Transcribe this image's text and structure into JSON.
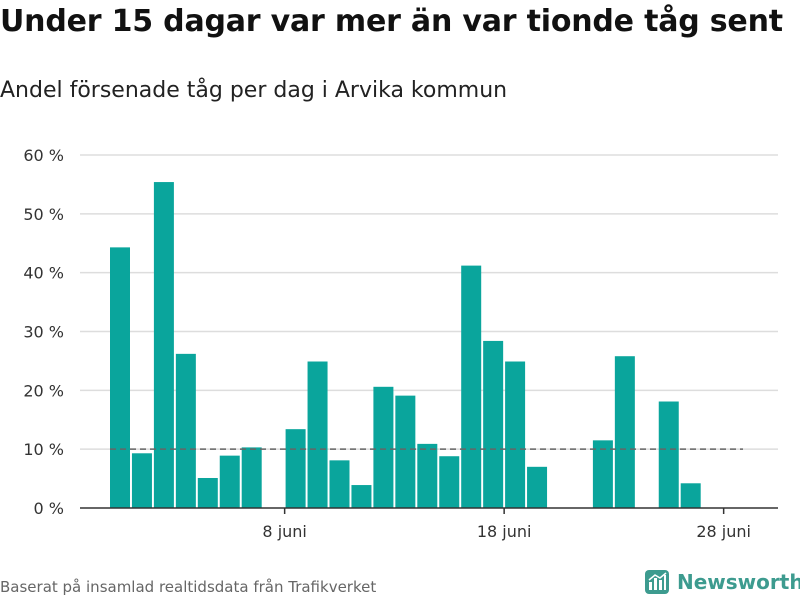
{
  "header": {
    "title": "Under 15 dagar var mer än var tionde tåg sent",
    "subtitle": "Andel försenade tåg per dag i Arvika kommun"
  },
  "footer": {
    "source": "Baserat på insamlad realtidsdata från Trafikverket",
    "logo_text": "Newsworthy",
    "logo_icon": "bar-chart-logo-icon"
  },
  "colors": {
    "bar": "#0aa59c",
    "grid": "#dddddd",
    "axis": "#333333",
    "reference_line": "#666666",
    "logo": "#3d9b8f"
  },
  "chart_data": {
    "type": "bar",
    "x_type": "date",
    "categories": [
      "2019-06-01",
      "2019-06-02",
      "2019-06-03",
      "2019-06-04",
      "2019-06-05",
      "2019-06-06",
      "2019-06-07",
      "2019-06-08",
      "2019-06-09",
      "2019-06-10",
      "2019-06-11",
      "2019-06-12",
      "2019-06-13",
      "2019-06-14",
      "2019-06-15",
      "2019-06-16",
      "2019-06-17",
      "2019-06-18",
      "2019-06-19",
      "2019-06-20",
      "2019-06-21",
      "2019-06-22",
      "2019-06-23",
      "2019-06-24",
      "2019-06-25",
      "2019-06-26",
      "2019-06-27",
      "2019-06-28",
      "2019-06-29"
    ],
    "values": [
      44.3,
      9.3,
      55.4,
      26.2,
      5.1,
      8.9,
      10.3,
      null,
      13.4,
      24.9,
      8.1,
      3.9,
      20.6,
      19.1,
      10.9,
      8.8,
      41.2,
      28.4,
      24.9,
      7.0,
      null,
      null,
      11.5,
      25.8,
      null,
      18.1,
      4.2,
      null,
      null
    ],
    "reference_line": 10,
    "ylim": [
      0,
      60
    ],
    "yticks": [
      0,
      10,
      20,
      30,
      40,
      50,
      60
    ],
    "ytick_labels": [
      "0 %",
      "10 %",
      "20 %",
      "30 %",
      "40 %",
      "50 %",
      "60 %"
    ],
    "xticks": [
      {
        "date": "2019-06-08",
        "label": "8 juni"
      },
      {
        "date": "2019-06-18",
        "label": "18 juni"
      },
      {
        "date": "2019-06-28",
        "label": "28 juni"
      }
    ],
    "grid": true,
    "legend": "none"
  }
}
